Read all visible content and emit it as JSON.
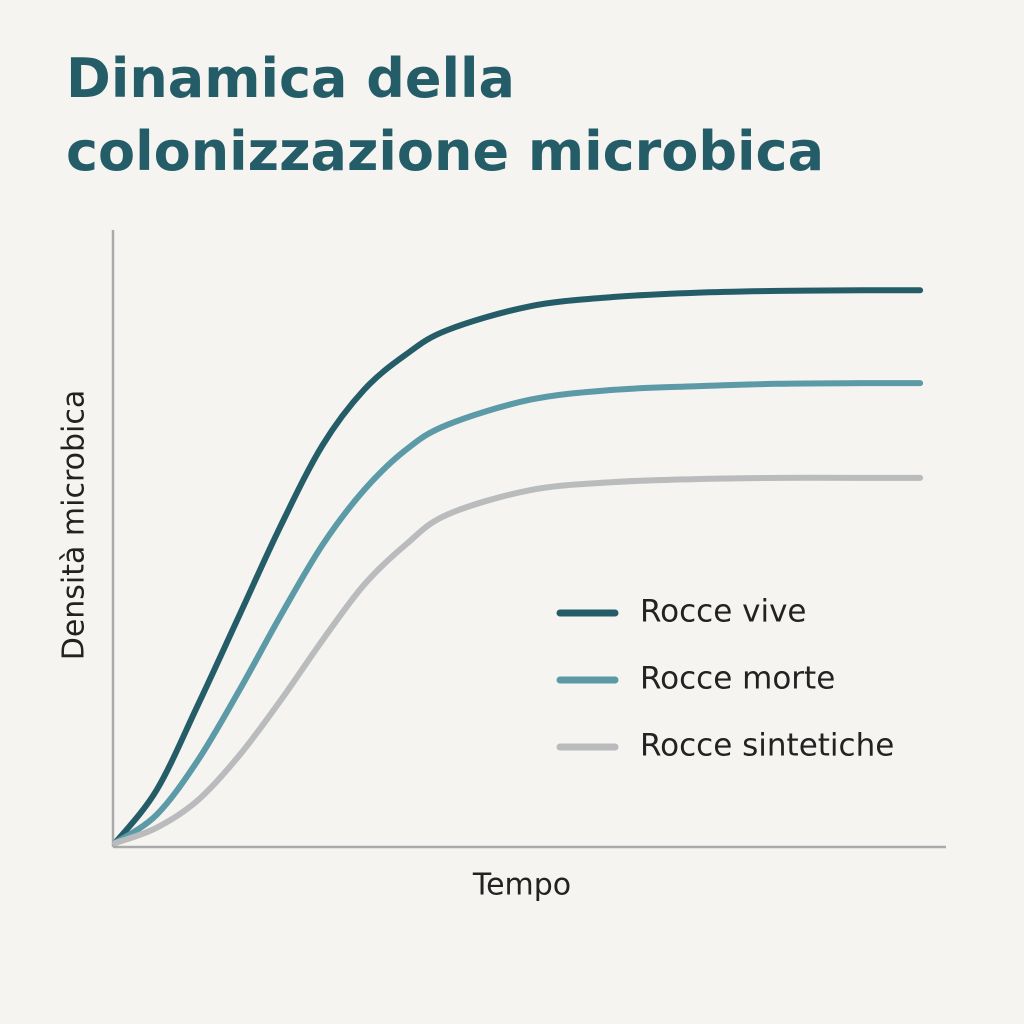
{
  "chart_data": {
    "type": "line",
    "title": [
      "Dinamica della",
      "colonizzazione microbica"
    ],
    "x_label": "Tempo",
    "y_label": "Densità microbica",
    "x": [
      0,
      5,
      10,
      15,
      20,
      25,
      30,
      35,
      40,
      50,
      60,
      70,
      80,
      90,
      97
    ],
    "xlim": [
      0,
      100
    ],
    "ylim": [
      0,
      100
    ],
    "grid": false,
    "legend": "lower right",
    "series": [
      {
        "name": "Rocce vive",
        "color": "#245d68",
        "values": [
          0.3,
          8.9,
          22.8,
          37.4,
          52,
          65,
          74,
          79.7,
          83.7,
          87.6,
          89.1,
          89.8,
          90.1,
          90.2,
          90.2
        ]
      },
      {
        "name": "Rocce morte",
        "color": "#5b9aa6",
        "values": [
          0.3,
          4.9,
          13.8,
          25.2,
          37.4,
          48.8,
          57.7,
          64.2,
          68.3,
          72.4,
          74,
          74.6,
          75,
          75.1,
          75.1
        ]
      },
      {
        "name": "Rocce sintetiche",
        "color": "#b9bbbc",
        "values": [
          0.3,
          2.8,
          7.3,
          14.6,
          23.6,
          33.3,
          42.3,
          48.8,
          53.7,
          57.7,
          59,
          59.5,
          59.7,
          59.7,
          59.7
        ]
      }
    ]
  }
}
